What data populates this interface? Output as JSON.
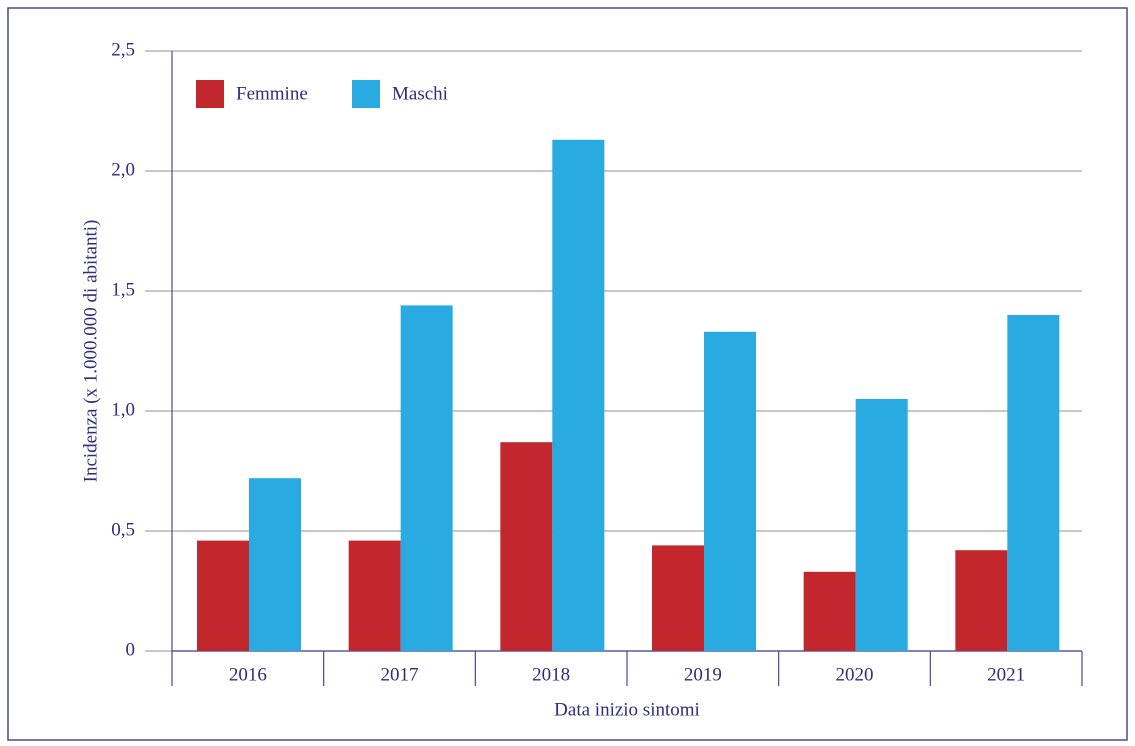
{
  "chart_data": {
    "type": "bar",
    "x_label": "Data inizio sintomi",
    "y_label": "Incidenza (x 1.000.000 di abitanti)",
    "categories": [
      "2016",
      "2017",
      "2018",
      "2019",
      "2020",
      "2021"
    ],
    "series": [
      {
        "name": "Femmine",
        "color": "#c1272d",
        "values": [
          0.46,
          0.46,
          0.87,
          0.44,
          0.33,
          0.42
        ]
      },
      {
        "name": "Maschi",
        "color": "#29abe2",
        "values": [
          0.72,
          1.44,
          2.13,
          1.33,
          1.05,
          1.4
        ]
      }
    ],
    "ylim": [
      0,
      2.5
    ],
    "yticks": [
      0,
      {
        "value": 0.5,
        "label": "0,5"
      },
      {
        "value": 1.0,
        "label": "1,0"
      },
      {
        "value": 1.5,
        "label": "1,5"
      },
      {
        "value": 2.0,
        "label": "2,0"
      },
      {
        "value": 2.5,
        "label": "2,5"
      }
    ],
    "grid": true,
    "legend": "top-left"
  }
}
